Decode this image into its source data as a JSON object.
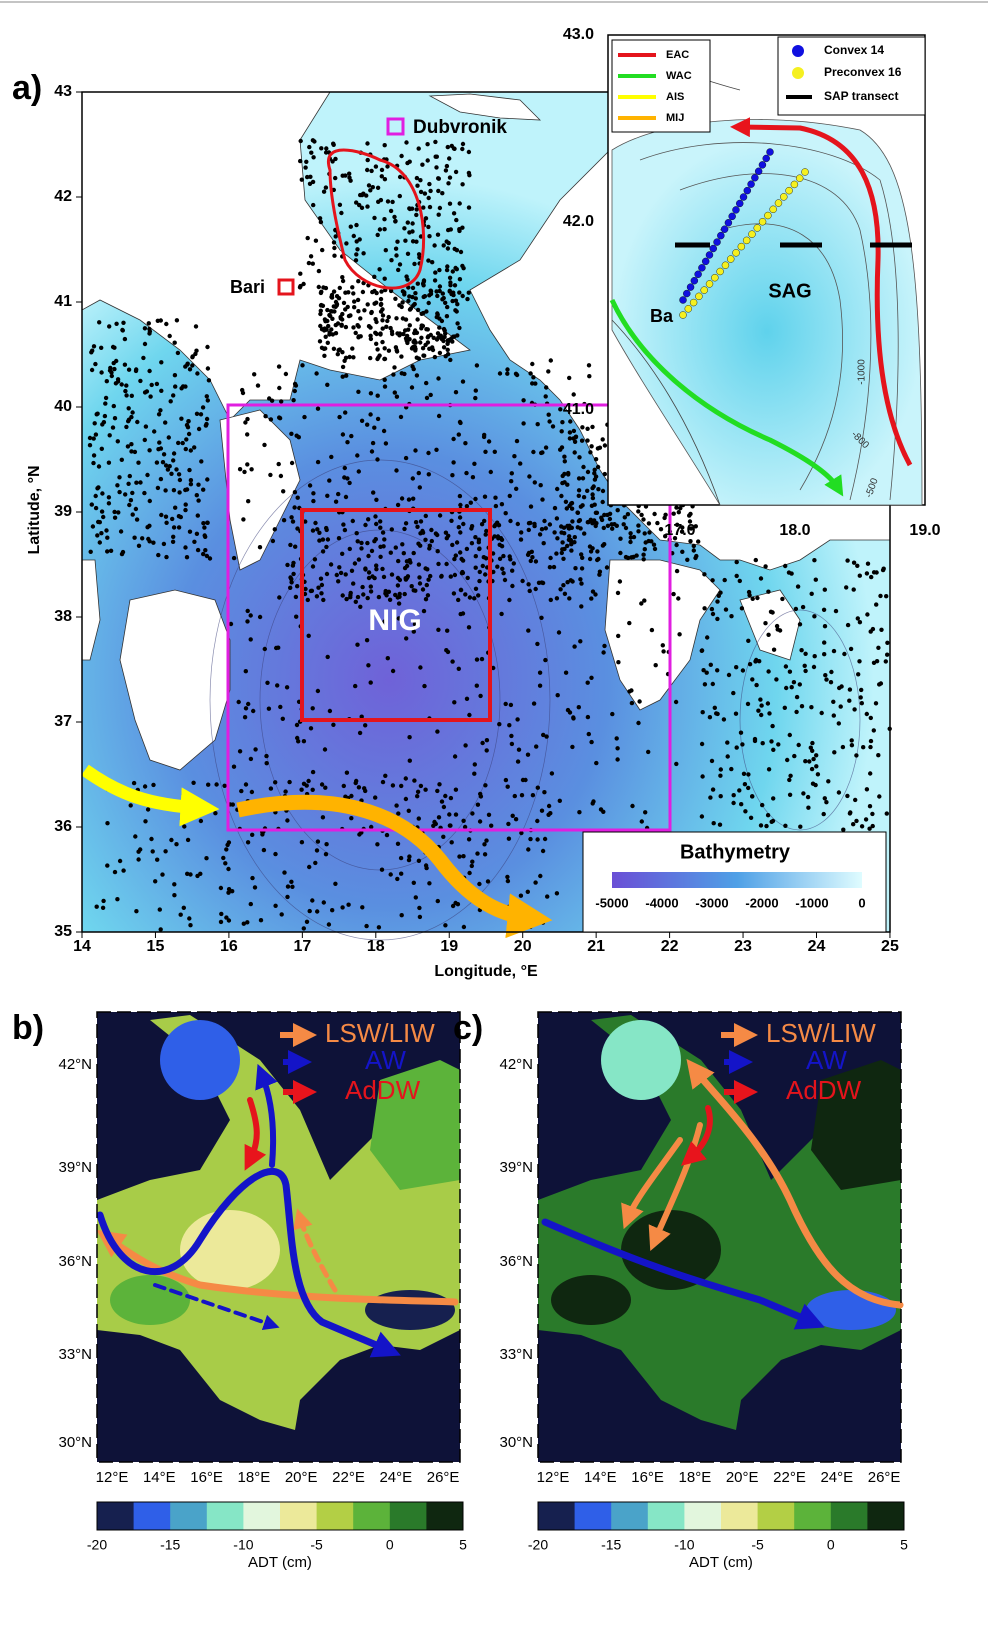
{
  "panel_a": {
    "label": "a)",
    "x_axis_title": "Longitude, °E",
    "y_axis_title": "Latitude, °N",
    "x_ticks": [
      "14",
      "15",
      "16",
      "17",
      "18",
      "19",
      "20",
      "21",
      "22",
      "23",
      "24",
      "25"
    ],
    "y_ticks": [
      "43",
      "42",
      "41",
      "40",
      "39",
      "38",
      "37",
      "36",
      "35"
    ],
    "places": {
      "dubrovnik": "Dubvronik",
      "bari": "Bari",
      "nig": "NIG"
    },
    "bathymetry": {
      "title": "Bathymetry",
      "ticks": [
        "-5000",
        "-4000",
        "-3000",
        "-2000",
        "-1000",
        "0"
      ]
    },
    "inset": {
      "x_ticks": [
        "17.0",
        "18.0",
        "19.0"
      ],
      "y_ticks": [
        "43.0",
        "42.0",
        "41.0"
      ],
      "currents": [
        "EAC",
        "WAC",
        "AIS",
        "MIJ"
      ],
      "markers": [
        "Convex 14",
        "Preconvex 16",
        "SAP transect"
      ],
      "sag": "SAG",
      "ba": "Ba",
      "contours": [
        "-1000",
        "-800",
        "-500"
      ]
    }
  },
  "panel_b": {
    "label": "b)",
    "x_ticks": [
      "12°E",
      "14°E",
      "16°E",
      "18°E",
      "20°E",
      "22°E",
      "24°E",
      "26°E"
    ],
    "y_ticks": [
      "42°N",
      "39°N",
      "36°N",
      "33°N",
      "30°N"
    ],
    "legend": [
      "LSW/LIW",
      "AW",
      "AdDW"
    ],
    "colorbar_ticks": [
      "-20",
      "-15",
      "-10",
      "-5",
      "0",
      "5"
    ],
    "colorbar_title": "ADT (cm)"
  },
  "panel_c": {
    "label": "c)",
    "x_ticks": [
      "12°E",
      "14°E",
      "16°E",
      "18°E",
      "20°E",
      "22°E",
      "24°E",
      "26°E"
    ],
    "y_ticks": [
      "42°N",
      "39°N",
      "36°N",
      "33°N",
      "30°N"
    ],
    "legend": [
      "LSW/LIW",
      "AW",
      "AdDW"
    ],
    "colorbar_ticks": [
      "-20",
      "-15",
      "-10",
      "-5",
      "0",
      "5"
    ],
    "colorbar_title": "ADT (cm)"
  }
}
